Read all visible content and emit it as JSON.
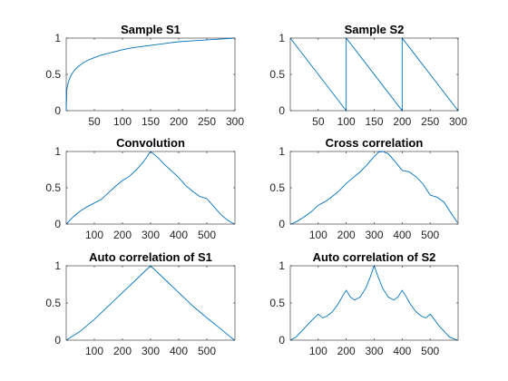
{
  "figure": {
    "background": "#ffffff",
    "line_color": "#0072bd",
    "axes_color": "#262626"
  },
  "chart_data": [
    {
      "type": "line",
      "title": "Sample S1",
      "xlim": [
        0,
        300
      ],
      "ylim": [
        0,
        1
      ],
      "xticks": [
        50,
        100,
        150,
        200,
        250,
        300
      ],
      "yticks": [
        0,
        0.5,
        1
      ],
      "grid": false,
      "series": [
        {
          "x": [
            0,
            1,
            2,
            4,
            8,
            12,
            16,
            20,
            25,
            30,
            40,
            50,
            60,
            70,
            80,
            90,
            100,
            120,
            140,
            160,
            180,
            200,
            220,
            240,
            260,
            280,
            300
          ],
          "y": [
            0,
            0.28,
            0.33,
            0.4,
            0.48,
            0.53,
            0.57,
            0.6,
            0.63,
            0.66,
            0.7,
            0.73,
            0.76,
            0.78,
            0.8,
            0.82,
            0.84,
            0.87,
            0.89,
            0.91,
            0.93,
            0.95,
            0.96,
            0.97,
            0.98,
            0.99,
            1.0
          ]
        }
      ]
    },
    {
      "type": "line",
      "title": "Sample S2",
      "xlim": [
        0,
        300
      ],
      "ylim": [
        0,
        1
      ],
      "xticks": [
        50,
        100,
        150,
        200,
        250,
        300
      ],
      "yticks": [
        0,
        0.5,
        1
      ],
      "grid": false,
      "series": [
        {
          "x": [
            0,
            100,
            100,
            200,
            200,
            300
          ],
          "y": [
            1,
            0,
            1,
            0,
            1,
            0
          ]
        }
      ]
    },
    {
      "type": "line",
      "title": "Convolution",
      "xlim": [
        0,
        600
      ],
      "ylim": [
        0,
        1
      ],
      "xticks": [
        100,
        200,
        300,
        400,
        500
      ],
      "yticks": [
        0,
        0.5,
        1
      ],
      "grid": false,
      "series": [
        {
          "x": [
            0,
            10,
            25,
            50,
            75,
            100,
            125,
            150,
            175,
            200,
            225,
            250,
            275,
            300,
            325,
            350,
            375,
            400,
            425,
            450,
            475,
            500,
            525,
            550,
            575,
            598
          ],
          "y": [
            0,
            0.04,
            0.1,
            0.18,
            0.24,
            0.29,
            0.34,
            0.43,
            0.52,
            0.6,
            0.66,
            0.75,
            0.86,
            1.0,
            0.92,
            0.82,
            0.73,
            0.64,
            0.53,
            0.45,
            0.38,
            0.35,
            0.24,
            0.13,
            0.05,
            0
          ]
        }
      ]
    },
    {
      "type": "line",
      "title": "Cross correlation",
      "xlim": [
        0,
        600
      ],
      "ylim": [
        0,
        1
      ],
      "xticks": [
        100,
        200,
        300,
        400,
        500
      ],
      "yticks": [
        0,
        0.5,
        1
      ],
      "grid": false,
      "series": [
        {
          "x": [
            0,
            10,
            25,
            50,
            75,
            100,
            125,
            150,
            175,
            200,
            225,
            250,
            275,
            300,
            315,
            330,
            350,
            375,
            400,
            425,
            450,
            475,
            500,
            525,
            550,
            575,
            598
          ],
          "y": [
            0,
            0.01,
            0.04,
            0.1,
            0.17,
            0.26,
            0.31,
            0.38,
            0.46,
            0.56,
            0.64,
            0.72,
            0.82,
            0.93,
            0.99,
            1.0,
            0.97,
            0.86,
            0.74,
            0.72,
            0.65,
            0.55,
            0.4,
            0.37,
            0.3,
            0.15,
            0.02
          ]
        }
      ]
    },
    {
      "type": "line",
      "title": "Auto correlation of S1",
      "xlim": [
        0,
        600
      ],
      "ylim": [
        0,
        1
      ],
      "xticks": [
        100,
        200,
        300,
        400,
        500
      ],
      "yticks": [
        0,
        0.5,
        1
      ],
      "grid": false,
      "series": [
        {
          "x": [
            0,
            50,
            100,
            150,
            200,
            250,
            300,
            350,
            400,
            450,
            500,
            550,
            598
          ],
          "y": [
            0,
            0.12,
            0.28,
            0.46,
            0.64,
            0.82,
            1.0,
            0.82,
            0.64,
            0.46,
            0.3,
            0.15,
            0
          ]
        }
      ]
    },
    {
      "type": "line",
      "title": "Auto correlation of S2",
      "xlim": [
        0,
        600
      ],
      "ylim": [
        0,
        1
      ],
      "xticks": [
        100,
        200,
        300,
        400,
        500
      ],
      "yticks": [
        0,
        0.5,
        1
      ],
      "grid": false,
      "series": [
        {
          "x": [
            0,
            20,
            40,
            60,
            80,
            100,
            115,
            130,
            150,
            170,
            185,
            200,
            215,
            230,
            250,
            270,
            285,
            300,
            315,
            330,
            350,
            370,
            385,
            400,
            415,
            430,
            450,
            470,
            485,
            500,
            515,
            530,
            550,
            570,
            590,
            598
          ],
          "y": [
            0,
            0.04,
            0.12,
            0.2,
            0.28,
            0.35,
            0.3,
            0.32,
            0.38,
            0.48,
            0.58,
            0.67,
            0.58,
            0.54,
            0.58,
            0.7,
            0.84,
            1.0,
            0.84,
            0.7,
            0.58,
            0.54,
            0.58,
            0.67,
            0.58,
            0.48,
            0.38,
            0.32,
            0.3,
            0.35,
            0.28,
            0.2,
            0.12,
            0.04,
            0.01,
            0
          ]
        }
      ]
    }
  ]
}
